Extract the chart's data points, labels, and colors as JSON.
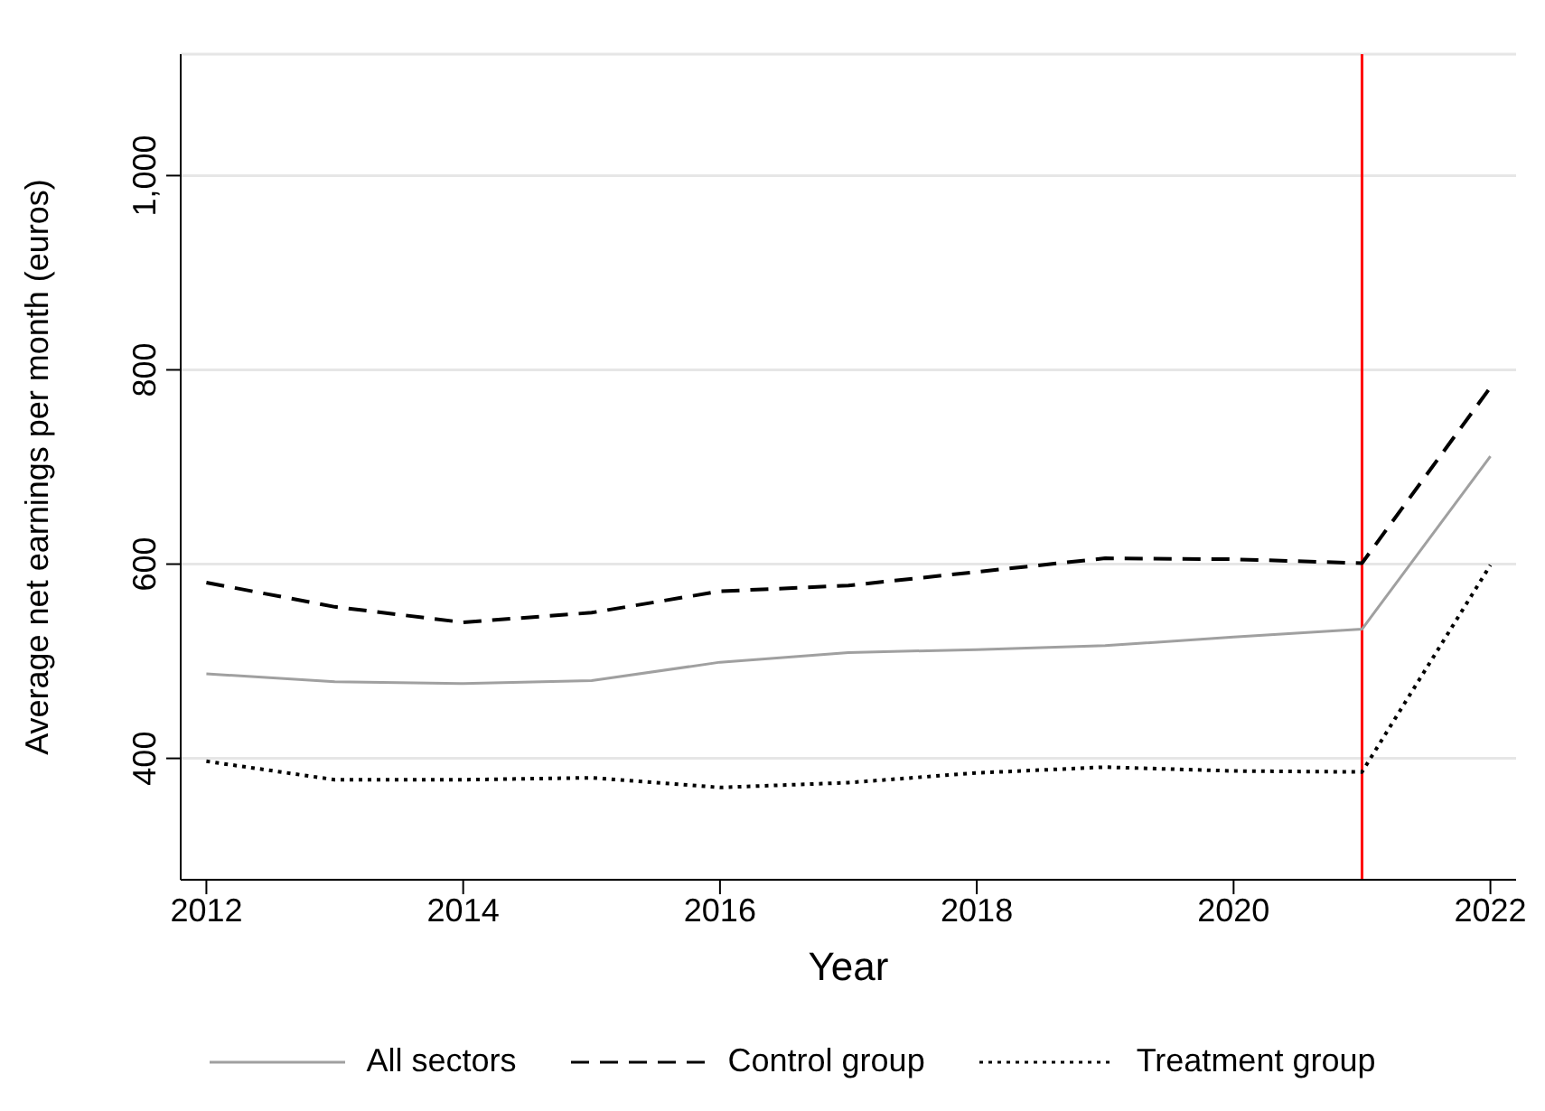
{
  "chart_data": {
    "type": "line",
    "xlabel": "Year",
    "ylabel": "Average net earnings per month (euros)",
    "x": [
      2012,
      2013,
      2014,
      2015,
      2016,
      2017,
      2018,
      2019,
      2020,
      2021,
      2022
    ],
    "series": [
      {
        "name": "All sectors",
        "color": "#a0a0a0",
        "line_style": "solid",
        "values": [
          487,
          479,
          477,
          480,
          499,
          509,
          512,
          516,
          525,
          533,
          711
        ]
      },
      {
        "name": "Control group",
        "color": "#000000",
        "line_style": "dashed",
        "values": [
          581,
          556,
          540,
          550,
          572,
          578,
          592,
          606,
          605,
          601,
          782
        ]
      },
      {
        "name": "Treatment group",
        "color": "#000000",
        "line_style": "dotted",
        "values": [
          397,
          378,
          378,
          380,
          370,
          375,
          385,
          391,
          387,
          386,
          599
        ]
      }
    ],
    "xlim": [
      2011.8,
      2022.2
    ],
    "xticks": [
      2012,
      2014,
      2016,
      2018,
      2020,
      2022
    ],
    "ylim": [
      275,
      1125
    ],
    "yticks": [
      400,
      600,
      800,
      {
        "value": 1000,
        "label": "1,000"
      }
    ],
    "grid": "y",
    "legend": "bottom",
    "marker": "none",
    "ref_lines": [
      {
        "axis": "x",
        "value": 2021,
        "color": "#ff0000"
      }
    ]
  }
}
